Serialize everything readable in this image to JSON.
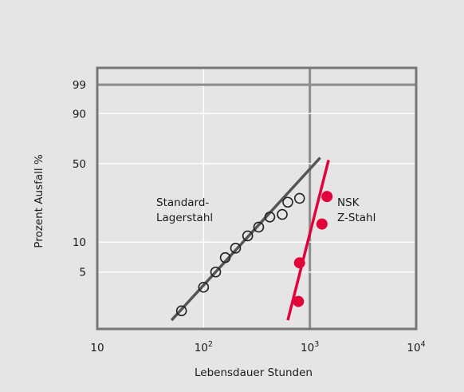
{
  "chart_data": {
    "type": "scatter",
    "title": "",
    "xlabel": "Lebensdauer Stunden",
    "ylabel": "Prozent Ausfall %",
    "x_scale": "log",
    "y_scale": "weibull",
    "xlim": [
      10,
      10000
    ],
    "x_ticks": [
      {
        "base": "10",
        "exp": ""
      },
      {
        "base": "10",
        "exp": "2"
      },
      {
        "base": "10",
        "exp": "3"
      },
      {
        "base": "10",
        "exp": "4"
      }
    ],
    "y_ticks": [
      "99",
      "90",
      "50",
      "10",
      "5"
    ],
    "grid": true,
    "colors": {
      "standard": "#555555",
      "nsk": "#e2003b",
      "grid_minor": "#ffffff",
      "grid_major": "#8c8c8c"
    },
    "series": [
      {
        "name": "Standard-Lagerstahl",
        "name_lines": [
          "Standard-",
          "Lagerstahl"
        ],
        "marker": "open-circle",
        "points": [
          {
            "x": 62,
            "y": 2.0
          },
          {
            "x": 100,
            "y": 3.5
          },
          {
            "x": 130,
            "y": 5.0
          },
          {
            "x": 160,
            "y": 7.0
          },
          {
            "x": 200,
            "y": 8.7
          },
          {
            "x": 260,
            "y": 11.5
          },
          {
            "x": 330,
            "y": 14.0
          },
          {
            "x": 420,
            "y": 17.5
          },
          {
            "x": 550,
            "y": 18.5
          },
          {
            "x": 620,
            "y": 24.0
          },
          {
            "x": 800,
            "y": 26.0
          }
        ],
        "fit": [
          {
            "x": 50,
            "y": 1.6
          },
          {
            "x": 1250,
            "y": 55
          }
        ]
      },
      {
        "name": "NSK Z-Stahl",
        "name_lines": [
          "NSK",
          "Z-Stahl"
        ],
        "marker": "filled-circle",
        "points": [
          {
            "x": 780,
            "y": 2.5
          },
          {
            "x": 800,
            "y": 6.2
          },
          {
            "x": 1300,
            "y": 15.0
          },
          {
            "x": 1450,
            "y": 27.0
          }
        ],
        "fit": [
          {
            "x": 620,
            "y": 1.6
          },
          {
            "x": 1500,
            "y": 53
          }
        ]
      }
    ]
  }
}
